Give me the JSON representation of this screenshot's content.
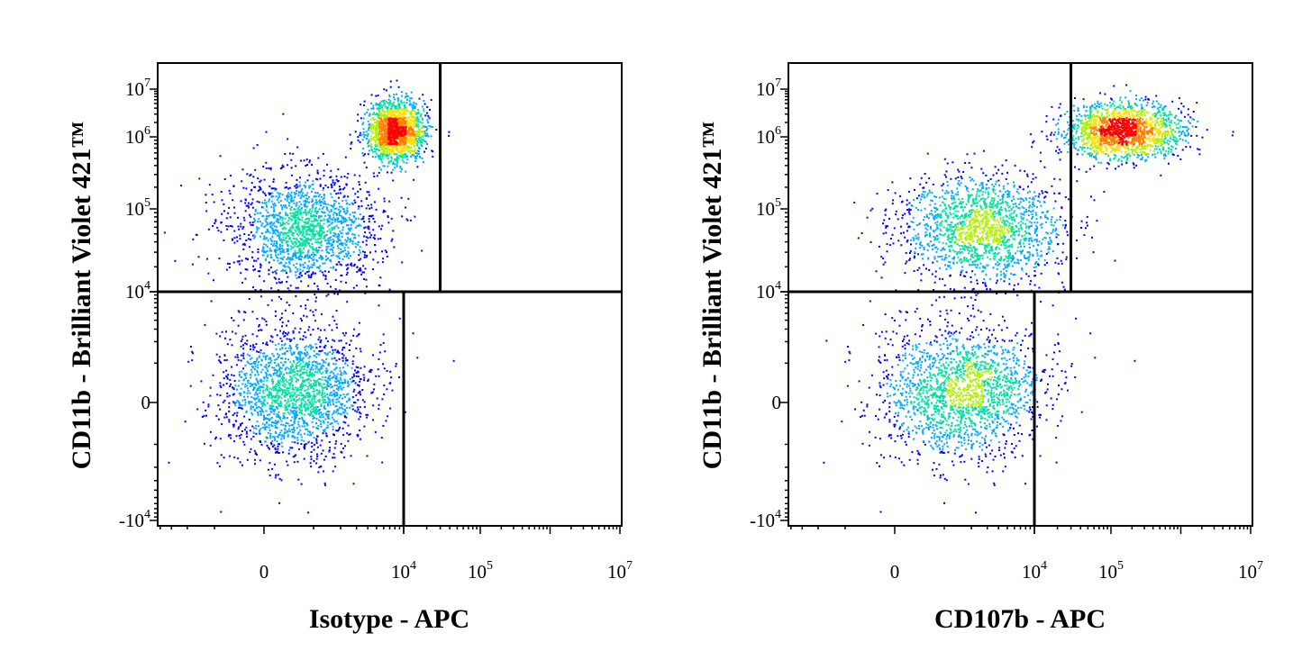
{
  "chart_data": [
    {
      "type": "scatter",
      "title": "",
      "xlabel": "Isotype - APC",
      "ylabel": "CD11b - Brilliant Violet 421™",
      "x_ticks": [
        {
          "base": "0",
          "exp": ""
        },
        {
          "base": "10",
          "exp": "4"
        },
        {
          "base": "10",
          "exp": "5"
        },
        {
          "base": "10",
          "exp": "7"
        }
      ],
      "y_ticks": [
        {
          "base": "10",
          "exp": "7"
        },
        {
          "base": "10",
          "exp": "6"
        },
        {
          "base": "10",
          "exp": "5"
        },
        {
          "base": "10",
          "exp": "4"
        },
        {
          "base": "0",
          "exp": ""
        },
        {
          "base": "-10",
          "exp": "4"
        }
      ],
      "x_tick_values": [
        0,
        10000,
        100000,
        10000000
      ],
      "y_tick_values": [
        10000000,
        1000000,
        100000,
        10000,
        0,
        -10000
      ],
      "scale": "biexponential",
      "quadrant_gates": {
        "horizontal_y": 10000,
        "upper_vertical_x": 30000,
        "lower_vertical_x": 10000
      },
      "populations": [
        {
          "name": "",
          "x_center": 800,
          "y_center": 60000,
          "x_spread": 0.55,
          "y_spread": 0.42,
          "weight": 0.32
        },
        {
          "name": "",
          "x_center": 600,
          "y_center": 300,
          "x_spread": 0.55,
          "y_spread": 0.5,
          "weight": 0.38
        },
        {
          "name": "",
          "x_center": 8000,
          "y_center": 1400000,
          "x_spread": 0.22,
          "y_spread": 0.22,
          "weight": 0.3
        }
      ],
      "colormap": [
        "#0000ff",
        "#00aaff",
        "#00e0a0",
        "#b0f000",
        "#ffe000",
        "#ff8000",
        "#ff0000"
      ]
    },
    {
      "type": "scatter",
      "title": "",
      "xlabel": "CD107b - APC",
      "ylabel": "CD11b - Brilliant Violet 421™",
      "x_ticks": [
        {
          "base": "0",
          "exp": ""
        },
        {
          "base": "10",
          "exp": "4"
        },
        {
          "base": "10",
          "exp": "5"
        },
        {
          "base": "10",
          "exp": "7"
        }
      ],
      "y_ticks": [
        {
          "base": "10",
          "exp": "7"
        },
        {
          "base": "10",
          "exp": "6"
        },
        {
          "base": "10",
          "exp": "5"
        },
        {
          "base": "10",
          "exp": "4"
        },
        {
          "base": "0",
          "exp": ""
        },
        {
          "base": "-10",
          "exp": "4"
        }
      ],
      "x_tick_values": [
        0,
        10000,
        100000,
        10000000
      ],
      "y_tick_values": [
        10000000,
        1000000,
        100000,
        10000,
        0,
        -10000
      ],
      "scale": "biexponential",
      "quadrant_gates": {
        "horizontal_y": 10000,
        "upper_vertical_x": 30000,
        "lower_vertical_x": 10000
      },
      "populations": [
        {
          "name": "",
          "x_center": 2500,
          "y_center": 60000,
          "x_spread": 0.6,
          "y_spread": 0.4,
          "weight": 0.32
        },
        {
          "name": "",
          "x_center": 1500,
          "y_center": 300,
          "x_spread": 0.6,
          "y_spread": 0.5,
          "weight": 0.36
        },
        {
          "name": "",
          "x_center": 150000,
          "y_center": 1400000,
          "x_spread": 0.45,
          "y_spread": 0.2,
          "weight": 0.32
        }
      ],
      "colormap": [
        "#0000ff",
        "#00aaff",
        "#00e0a0",
        "#b0f000",
        "#ffe000",
        "#ff8000",
        "#ff0000"
      ]
    }
  ]
}
